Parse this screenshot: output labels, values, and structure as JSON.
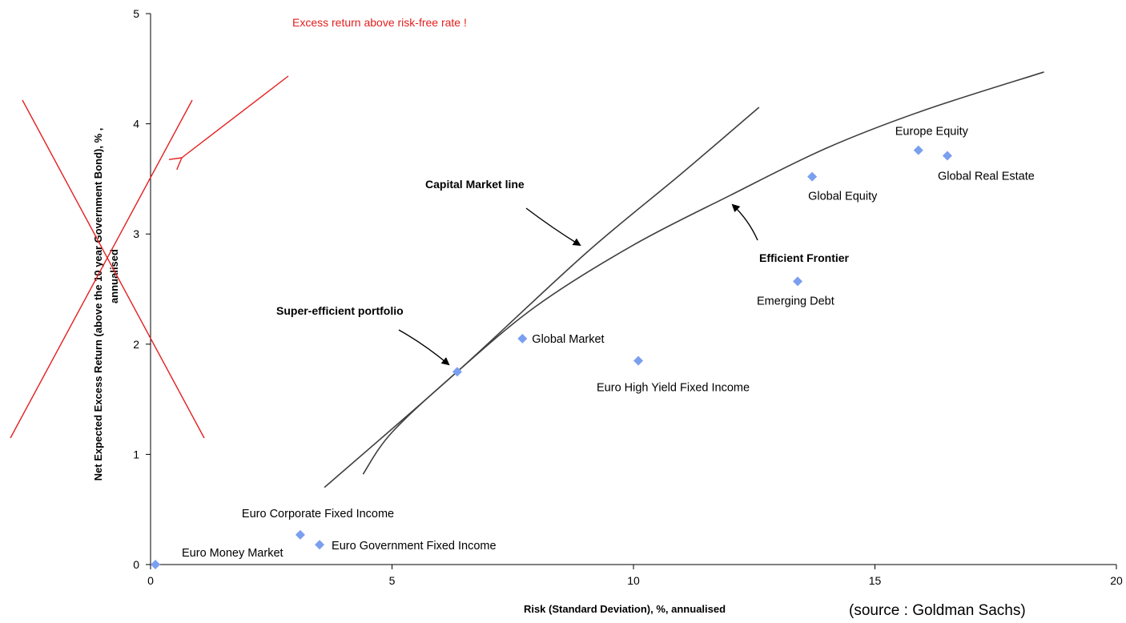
{
  "chart_data": {
    "type": "scatter",
    "xlabel": "Risk (Standard Deviation), %, annualised",
    "ylabel_line1": "Net Expected Excess Return (above the 10 year Government Bond), % ,",
    "ylabel_line2": "annualised",
    "xlim": [
      0,
      20
    ],
    "ylim": [
      0,
      5
    ],
    "x_ticks": [
      0,
      5,
      10,
      15,
      20
    ],
    "y_ticks": [
      0,
      1,
      2,
      3,
      4,
      5
    ],
    "grid": false,
    "points": [
      {
        "label": "Euro Money Market",
        "x": 0.1,
        "y": 0.0
      },
      {
        "label": "Euro Corporate Fixed Income",
        "x": 3.1,
        "y": 0.27
      },
      {
        "label": "Euro Government Fixed Income",
        "x": 3.5,
        "y": 0.18
      },
      {
        "label": "Super-efficient point",
        "x": 6.35,
        "y": 1.75
      },
      {
        "label": "Global Market",
        "x": 7.7,
        "y": 2.05
      },
      {
        "label": "Euro High Yield Fixed Income",
        "x": 10.1,
        "y": 1.85
      },
      {
        "label": "Emerging Debt",
        "x": 13.4,
        "y": 2.57
      },
      {
        "label": "Global Equity",
        "x": 13.7,
        "y": 3.52
      },
      {
        "label": "Europe Equity",
        "x": 15.9,
        "y": 3.76
      },
      {
        "label": "Global Real Estate",
        "x": 16.5,
        "y": 3.71
      }
    ],
    "capital_market_line": [
      [
        3.6,
        0.7
      ],
      [
        6.35,
        1.75
      ],
      [
        9.0,
        2.82
      ],
      [
        11.0,
        3.55
      ],
      [
        12.6,
        4.15
      ]
    ],
    "efficient_frontier": [
      [
        4.4,
        0.82
      ],
      [
        5.0,
        1.2
      ],
      [
        6.35,
        1.75
      ],
      [
        8.0,
        2.35
      ],
      [
        10.0,
        2.9
      ],
      [
        12.0,
        3.35
      ],
      [
        14.0,
        3.78
      ],
      [
        16.0,
        4.12
      ],
      [
        18.5,
        4.47
      ]
    ],
    "annotations": {
      "capital_market_line": "Capital Market line",
      "efficient_frontier": "Efficient Frontier",
      "super_efficient": "Super-efficient portfolio",
      "excess_return_note": "Excess return above risk-free rate !",
      "source": "(source : Goldman Sachs)"
    },
    "colors": {
      "marker": "#7b9fef",
      "curve": "#3f3f3f",
      "annotation_red": "#e41e1e"
    }
  }
}
